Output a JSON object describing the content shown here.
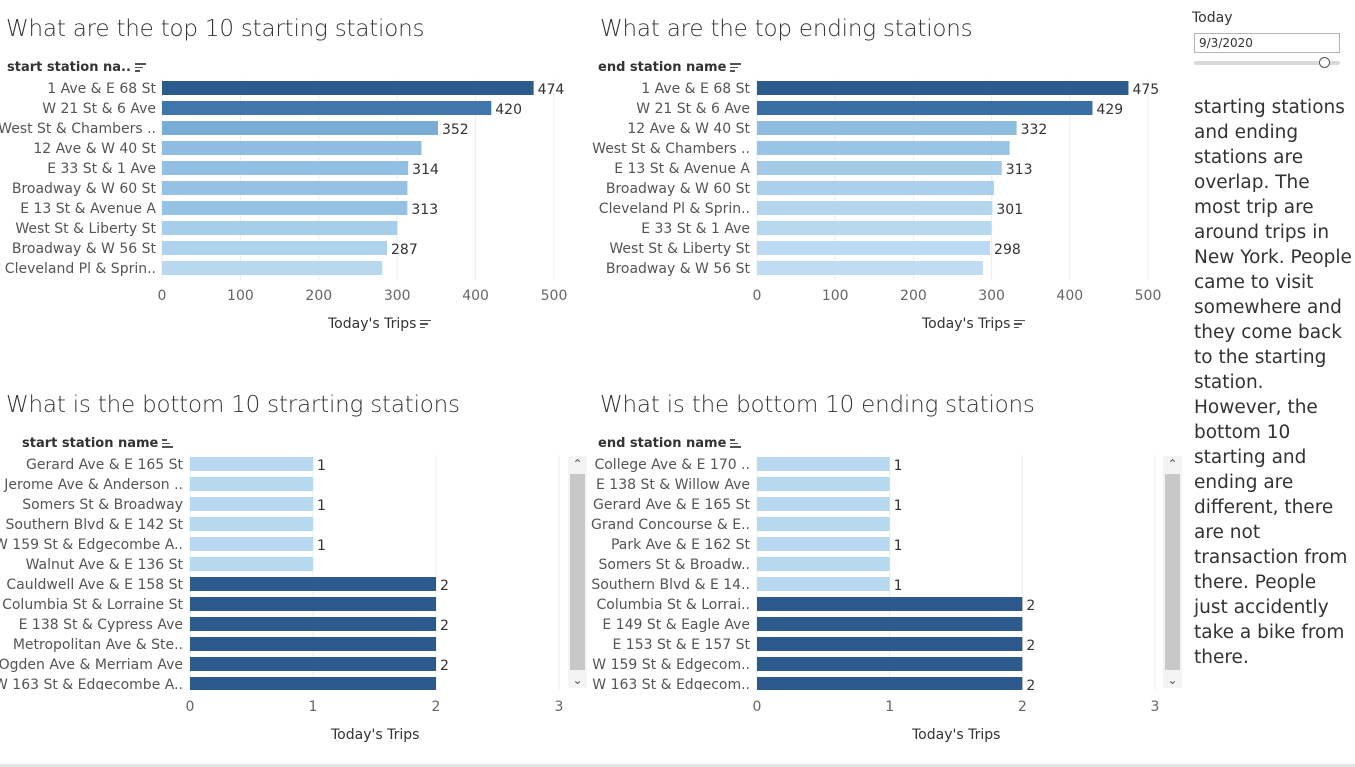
{
  "filter": {
    "label": "Today",
    "value": "9/3/2020"
  },
  "note": "starting stations and ending stations are overlap. The most trip are around trips in New York. People came to visit somewhere and they come back to the starting station. However, the bottom 10 starting and ending are different, there are not transaction from there. People just accidently take a bike from there.",
  "chart_data": [
    {
      "type": "bar",
      "orientation": "horizontal",
      "title": "What are the top 10 starting stations",
      "row_header": "start station na..",
      "xlabel": "Today's Trips",
      "xlim": [
        0,
        520
      ],
      "xticks": [
        "0",
        "100",
        "200",
        "300",
        "400",
        "500"
      ],
      "categories": [
        "1 Ave & E 68 St",
        "W 21 St & 6 Ave",
        "West St & Chambers ..",
        "12 Ave & W 40 St",
        "E 33 St & 1 Ave",
        "Broadway & W 60 St",
        "E 13 St & Avenue A",
        "West St & Liberty St",
        "Broadway & W 56 St",
        "Cleveland Pl & Sprin.."
      ],
      "values": [
        474,
        420,
        352,
        331,
        314,
        313,
        313,
        300,
        287,
        281
      ],
      "labels": [
        "474",
        "420",
        "352",
        "",
        "314",
        "",
        "313",
        "",
        "287",
        ""
      ],
      "colors": [
        "#2c5a8c",
        "#3f77ad",
        "#7aadd6",
        "#8fbde0",
        "#92bfe2",
        "#95c2e3",
        "#95c2e3",
        "#a6cdea",
        "#b0d3ed",
        "#b8d8f0"
      ]
    },
    {
      "type": "bar",
      "orientation": "horizontal",
      "title": "What are the top ending stations",
      "row_header": "end station name",
      "xlabel": "Today's Trips",
      "xlim": [
        0,
        520
      ],
      "xticks": [
        "0",
        "100",
        "200",
        "300",
        "400",
        "500"
      ],
      "categories": [
        "1 Ave & E 68 St",
        "W 21 St & 6 Ave",
        "12 Ave & W 40 St",
        "West St & Chambers ..",
        "E 13 St & Avenue A",
        "Broadway & W 60 St",
        "Cleveland Pl & Sprin..",
        "E 33 St & 1 Ave",
        "West St & Liberty St",
        "Broadway & W 56 St"
      ],
      "values": [
        475,
        429,
        332,
        323,
        313,
        303,
        301,
        300,
        298,
        289
      ],
      "labels": [
        "475",
        "429",
        "332",
        "",
        "313",
        "",
        "301",
        "",
        "298",
        ""
      ],
      "colors": [
        "#2c5a8c",
        "#3a6fa6",
        "#8fbde0",
        "#99c5e4",
        "#a3cbe8",
        "#abd0eb",
        "#b3d5ee",
        "#b8d8f0",
        "#bcdaf1",
        "#bfdcf2"
      ]
    },
    {
      "type": "bar",
      "orientation": "horizontal",
      "title": "What is the bottom 10 strarting stations",
      "row_header": "start station name",
      "xlabel": "Today's Trips",
      "xlim": [
        0,
        3
      ],
      "xticks": [
        "0",
        "1",
        "2",
        "3"
      ],
      "categories": [
        "Gerard Ave & E 165 St",
        "Jerome Ave & Anderson ..",
        "Somers St & Broadway",
        "Southern Blvd & E 142 St",
        "W 159 St & Edgecombe A..",
        "Walnut Ave & E 136 St",
        "Cauldwell Ave & E 158 St",
        "Columbia St & Lorraine St",
        "E 138 St & Cypress Ave",
        "Metropolitan Ave & Ste..",
        "Ogden Ave & Merriam Ave",
        "W 163 St & Edgecombe A.."
      ],
      "values": [
        1,
        1,
        1,
        1,
        1,
        1,
        2,
        2,
        2,
        2,
        2,
        2
      ],
      "labels": [
        "1",
        "",
        "1",
        "",
        "1",
        "",
        "2",
        "",
        "2",
        "",
        "2",
        ""
      ],
      "colors": [
        "#b8d8f0",
        "#b8d8f0",
        "#b8d8f0",
        "#b8d8f0",
        "#b8d8f0",
        "#b8d8f0",
        "#2c5a8c",
        "#2c5a8c",
        "#2c5a8c",
        "#2c5a8c",
        "#2c5a8c",
        "#2c5a8c"
      ]
    },
    {
      "type": "bar",
      "orientation": "horizontal",
      "title": "What is the bottom 10 ending stations",
      "row_header": "end station name",
      "xlabel": "Today's Trips",
      "xlim": [
        0,
        3
      ],
      "xticks": [
        "0",
        "1",
        "2",
        "3"
      ],
      "categories": [
        "College Ave & E 170 ..",
        "E 138 St & Willow Ave",
        "Gerard Ave & E 165 St",
        "Grand Concourse & E..",
        "Park Ave & E 162 St",
        "Somers St & Broadw..",
        "Southern Blvd & E 14..",
        "Columbia St & Lorrai..",
        "E 149 St & Eagle Ave",
        "E 153 St & E 157 St",
        "W 159 St & Edgecom..",
        "W 163 St & Edgecom.."
      ],
      "values": [
        1,
        1,
        1,
        1,
        1,
        1,
        1,
        2,
        2,
        2,
        2,
        2
      ],
      "labels": [
        "1",
        "",
        "1",
        "",
        "1",
        "",
        "1",
        "2",
        "",
        "2",
        "",
        "2"
      ],
      "colors": [
        "#b8d8f0",
        "#b8d8f0",
        "#b8d8f0",
        "#b8d8f0",
        "#b8d8f0",
        "#b8d8f0",
        "#b8d8f0",
        "#2c5a8c",
        "#2c5a8c",
        "#2c5a8c",
        "#2c5a8c",
        "#2c5a8c"
      ]
    }
  ]
}
